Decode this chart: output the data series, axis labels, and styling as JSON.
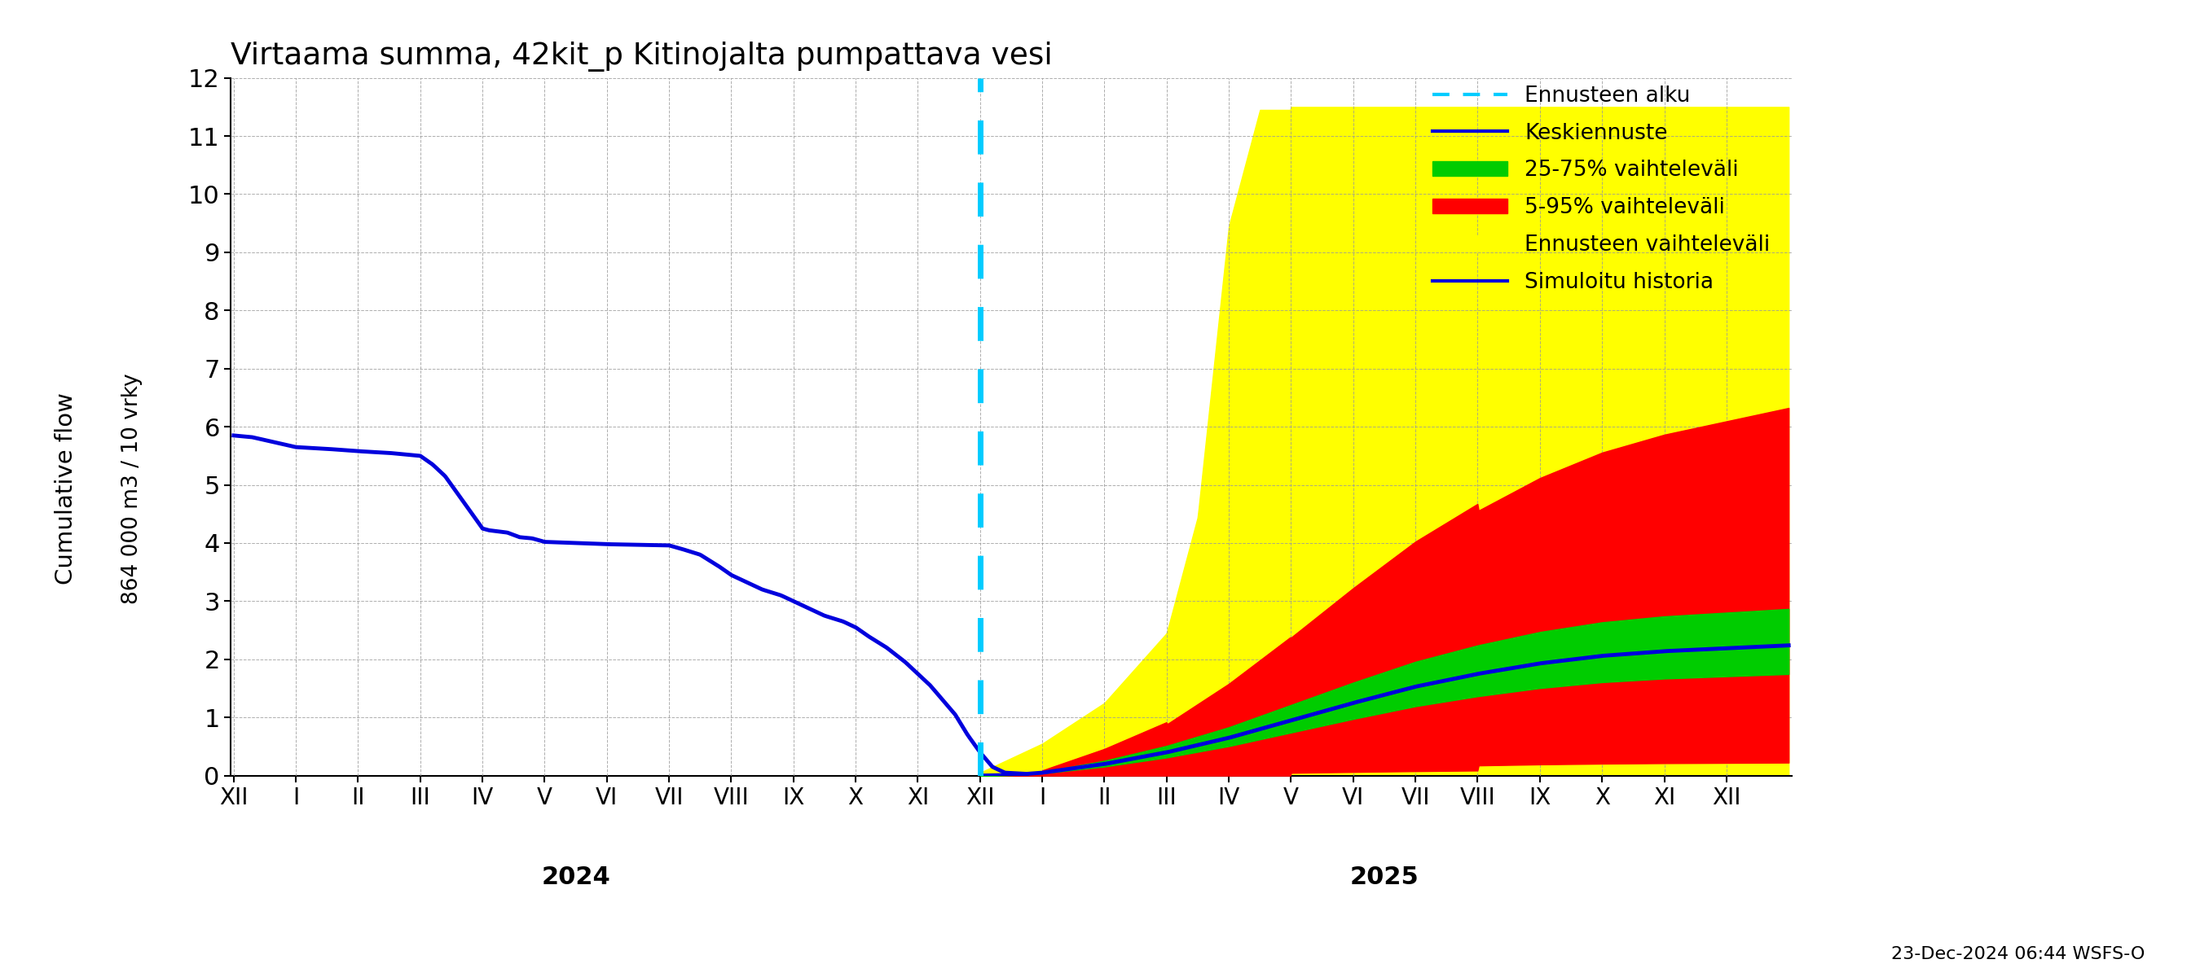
{
  "title": "Virtaama summa, 42kit_p Kitinojalta pumpattava vesi",
  "ylabel": "Cumulative flow",
  "ylabel2": "864 000 m3 / 10 vrky",
  "x_tick_labels_2024": [
    "XII",
    "I",
    "II",
    "III",
    "IV",
    "V",
    "VI",
    "VII",
    "VIII",
    "IX",
    "X",
    "XI"
  ],
  "x_tick_labels_2025": [
    "I",
    "II",
    "III",
    "IV",
    "V",
    "VI",
    "VII",
    "VIII",
    "IX",
    "X",
    "XI",
    "XII"
  ],
  "ylim": [
    0,
    12
  ],
  "yticks": [
    0,
    1,
    2,
    3,
    4,
    5,
    6,
    7,
    8,
    9,
    10,
    11,
    12
  ],
  "history_color": "#0000dd",
  "median_color": "#0000dd",
  "band_25_75_color": "#00cc00",
  "band_5_95_color": "#ff0000",
  "band_ennuste_color": "#ffff00",
  "cyan_color": "#00ccff",
  "legend_labels": [
    "Ennusteen alku",
    "Keskiennuste",
    "25-75% vaihteleväli",
    "5-95% vaihteleväli",
    "Ennusteen vaihteleväli",
    "Simuloitu historia"
  ],
  "footer_text": "23-Dec-2024 06:44 WSFS-O",
  "background_color": "#ffffff",
  "grid_color": "#999999"
}
